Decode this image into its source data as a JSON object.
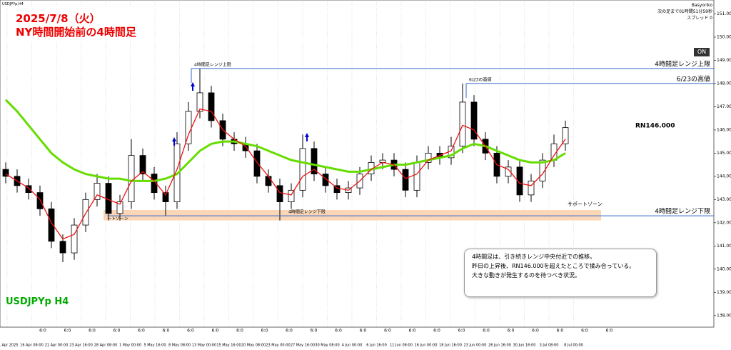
{
  "chart_data": {
    "type": "candlestick",
    "title": "2025/7/8（火）",
    "subtitle": "NY時間開始前の4時間足",
    "symbol": "USDJPYp H4",
    "symbol_small": "USDJPYp,H4",
    "broker": "Basyoriko",
    "countdown": "次の足まで01時間51分59秒",
    "spread": "スプレッド 0",
    "button": "ON",
    "comment": [
      "4時間足は、引き続きレンジ中央付近での推移。",
      "昨日の上昇後、RN146.000を超えたところで揉み合っている。",
      "大きな動きが発生するのを待つべき状況。"
    ],
    "up_color": "#ffffff",
    "down_color": "#000000",
    "open": [
      144.3,
      144.0,
      143.6,
      143.3,
      142.6,
      141.2,
      140.7,
      141.9,
      143.0,
      143.7,
      142.4,
      142.9,
      144.9,
      144.1,
      143.3,
      142.9,
      145.4,
      146.8,
      147.6,
      146.4,
      145.6,
      145.4,
      145.1,
      144.0,
      143.6,
      142.9,
      143.4,
      145.2,
      144.1,
      143.6,
      143.3,
      143.5,
      144.1,
      144.6,
      144.7,
      144.3,
      143.4,
      144.6,
      145.0,
      144.8,
      145.3,
      147.2,
      145.6,
      145.0,
      144.0,
      144.4,
      143.2,
      143.8,
      144.7,
      145.4
    ],
    "high": [
      144.6,
      144.3,
      143.9,
      143.6,
      142.9,
      141.5,
      142.2,
      143.3,
      144.1,
      144.0,
      143.2,
      145.6,
      145.2,
      144.4,
      143.6,
      145.9,
      147.2,
      148.65,
      147.9,
      146.7,
      145.9,
      145.7,
      145.4,
      144.3,
      143.9,
      143.7,
      145.8,
      145.5,
      144.4,
      143.9,
      143.8,
      144.4,
      144.9,
      145.0,
      145.0,
      144.6,
      144.9,
      145.3,
      145.3,
      145.7,
      148.0,
      147.5,
      145.9,
      145.3,
      144.7,
      144.7,
      144.1,
      145.0,
      145.8,
      146.4
    ],
    "low": [
      143.7,
      143.3,
      143.0,
      142.3,
      140.9,
      140.3,
      140.4,
      141.6,
      142.7,
      142.1,
      142.1,
      142.6,
      143.8,
      143.0,
      142.3,
      142.6,
      145.1,
      146.5,
      146.1,
      145.3,
      145.1,
      144.8,
      143.7,
      143.3,
      142.1,
      142.6,
      143.1,
      143.8,
      143.3,
      143.0,
      143.0,
      143.2,
      143.8,
      144.3,
      144.0,
      143.1,
      143.1,
      144.3,
      144.5,
      144.5,
      145.0,
      145.3,
      144.7,
      143.7,
      143.7,
      142.9,
      142.9,
      143.5,
      144.4,
      145.1
    ],
    "close": [
      144.0,
      143.6,
      143.3,
      142.6,
      141.2,
      140.7,
      141.9,
      143.0,
      143.7,
      142.4,
      142.9,
      144.9,
      144.1,
      143.3,
      142.9,
      145.4,
      146.8,
      147.6,
      146.4,
      145.6,
      145.4,
      145.1,
      144.0,
      143.6,
      142.9,
      143.4,
      145.2,
      144.1,
      143.6,
      143.3,
      143.5,
      144.1,
      144.6,
      144.7,
      144.3,
      143.4,
      144.6,
      145.0,
      144.8,
      145.3,
      147.2,
      145.6,
      145.0,
      144.0,
      144.4,
      143.2,
      143.8,
      144.7,
      145.4,
      146.1
    ],
    "series": [
      {
        "color": "#66dd00",
        "values": [
          147.3,
          146.8,
          146.2,
          145.6,
          145.0,
          144.6,
          144.3,
          144.1,
          144.0,
          143.9,
          143.9,
          143.8,
          143.8,
          143.8,
          143.9,
          144.1,
          144.6,
          145.1,
          145.4,
          145.5,
          145.5,
          145.4,
          145.3,
          145.1,
          144.9,
          144.7,
          144.6,
          144.5,
          144.4,
          144.3,
          144.2,
          144.2,
          144.3,
          144.4,
          144.5,
          144.5,
          144.6,
          144.7,
          144.8,
          144.9,
          145.2,
          145.4,
          145.3,
          145.1,
          144.9,
          144.7,
          144.6,
          144.6,
          144.7,
          145.0
        ]
      },
      {
        "color": "#ee1111",
        "values": [
          144.1,
          143.8,
          143.5,
          143.0,
          142.0,
          141.3,
          141.5,
          142.4,
          143.2,
          143.0,
          142.8,
          143.8,
          144.2,
          143.8,
          143.2,
          144.3,
          145.8,
          146.9,
          146.8,
          146.0,
          145.6,
          145.3,
          144.6,
          144.0,
          143.3,
          143.2,
          144.0,
          144.3,
          143.9,
          143.5,
          143.4,
          143.8,
          144.3,
          144.6,
          144.5,
          143.9,
          144.1,
          144.7,
          144.9,
          145.1,
          146.2,
          146.0,
          145.3,
          144.5,
          144.3,
          143.7,
          143.6,
          144.1,
          144.9,
          145.6
        ]
      }
    ],
    "x_labels": [
      "11 Apr 2025",
      "16 Apr 08:00",
      "21 Apr 00:00",
      "23 Apr 16:00",
      "28 Apr 08:00",
      "1 May 00:00",
      "5 May 16:00",
      "8 May 08:00",
      "13 May 00:00",
      "15 May 16:00",
      "20 May 08:00",
      "23 May 00:00",
      "27 May 16:00",
      "30 May 08:00",
      "4 Jun 00:00",
      "6 Jun 16:00",
      "11 Jun 08:00",
      "16 Jun 00:00",
      "18 Jun 16:00",
      "23 Jun 00:00",
      "26 Jun 16:00",
      "30 Jun 16:00",
      "3 Jul 08:00",
      "8 Jul 00:00"
    ],
    "session_labels": [
      "6:0",
      "6:0",
      "6:0",
      "6:0",
      "6:0",
      "6:0",
      "6:0",
      "6:0",
      "6:0",
      "6:0",
      "6:0",
      "6:0",
      "6:0",
      "6:0",
      "6:0",
      "6:0",
      "6:0",
      "6:0",
      "6:0",
      "6:0",
      "6:0",
      "6:0",
      "6:0",
      "6:0"
    ],
    "ylim": [
      137.5,
      151.6
    ],
    "yticks": [
      {
        "value": 138,
        "label": "138.000"
      },
      {
        "value": 139,
        "label": "139.000"
      },
      {
        "value": 140,
        "label": "140.000"
      },
      {
        "value": 141,
        "label": "141.000"
      },
      {
        "value": 142,
        "label": "142.000"
      },
      {
        "value": 143,
        "label": "143.000"
      },
      {
        "value": 144,
        "label": "144.000"
      },
      {
        "value": 145,
        "label": "145.000"
      },
      {
        "value": 146,
        "label": "146.000"
      },
      {
        "value": 147,
        "label": "147.000"
      },
      {
        "value": 148,
        "label": "148.000"
      },
      {
        "value": 149,
        "label": "149.000"
      },
      {
        "value": 150,
        "label": "150.000"
      },
      {
        "value": 151,
        "label": "151.000"
      }
    ],
    "grid": true,
    "levels": [
      {
        "label": "4時間足レンジ上限",
        "value": 148.65,
        "color": "#3366cc"
      },
      {
        "label": "6/23の高値",
        "value": 148.0,
        "color": "#3366cc"
      },
      {
        "label": "4時間足レンジ下限",
        "value": 142.3,
        "color": "#3366cc"
      }
    ],
    "zone": {
      "label": "サポートゾーン",
      "inner_label": "ートゾーン",
      "range": [
        142.1,
        142.55
      ],
      "color": "#fbd3b0"
    },
    "round_number": {
      "label": "RN146.000",
      "value": 146.0
    }
  }
}
